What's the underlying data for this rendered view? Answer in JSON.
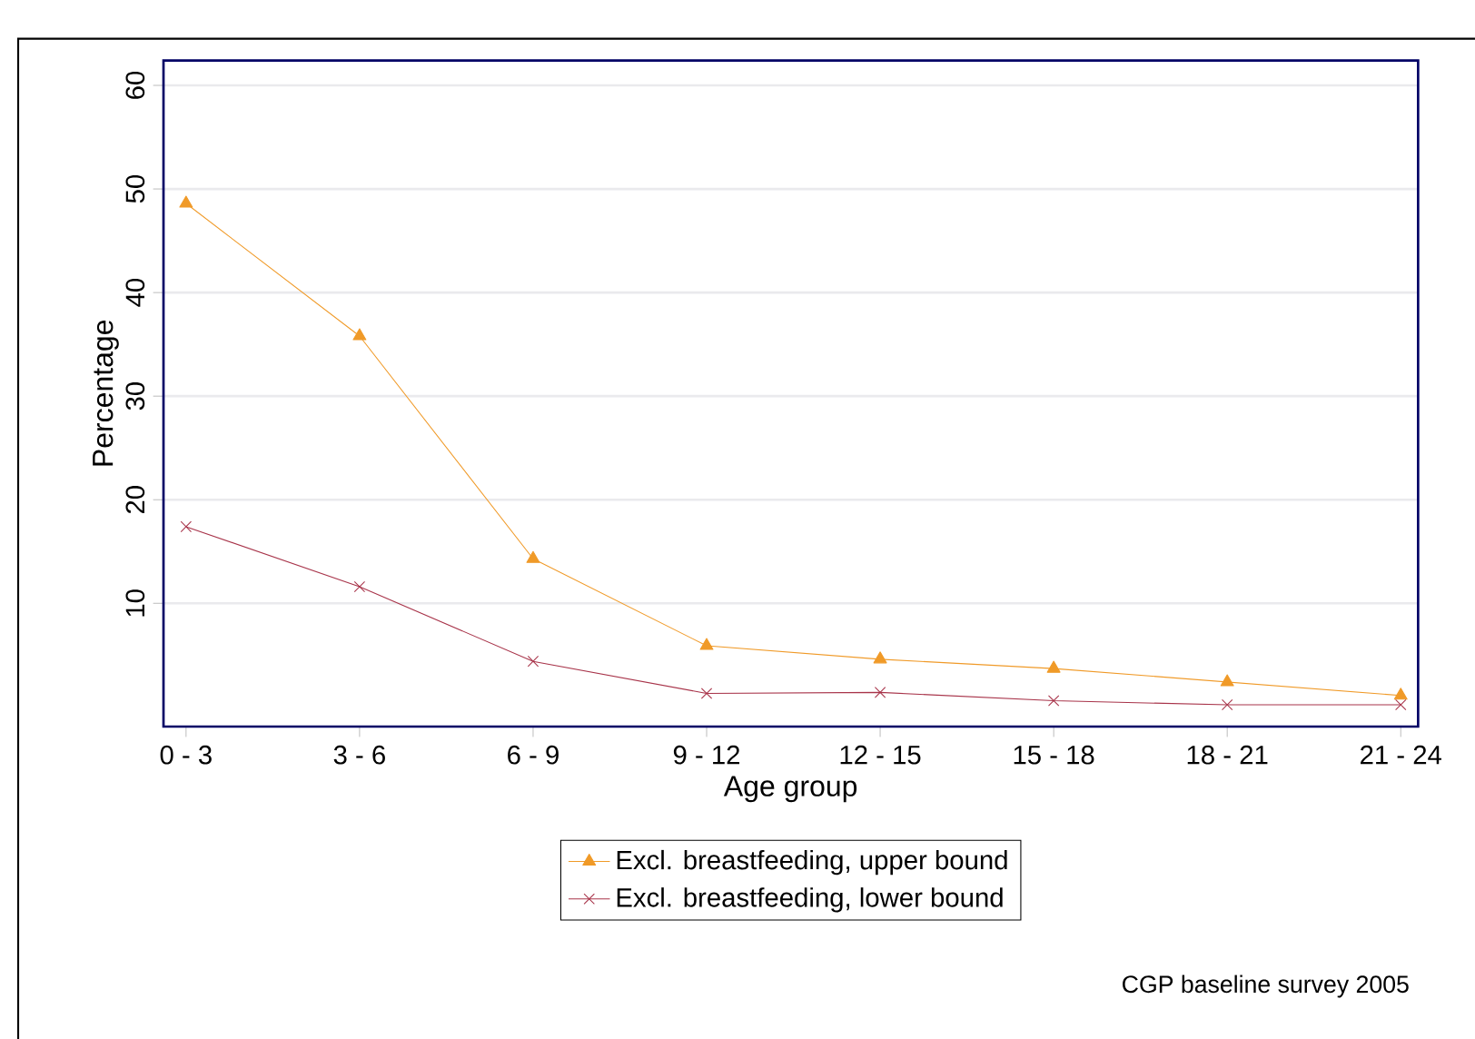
{
  "chart_data": {
    "type": "line",
    "xlabel": "Age group",
    "ylabel": "Percentage",
    "categories": [
      "0 - 3",
      "3 - 6",
      "6 - 9",
      "9 - 12",
      "12 - 15",
      "15 - 18",
      "18 - 21",
      "21 - 24"
    ],
    "series": [
      {
        "name": "Excl. breastfeeding, upper bound",
        "color": "#f09a28",
        "marker": "triangle",
        "values": [
          48.6,
          35.8,
          14.3,
          5.9,
          4.6,
          3.7,
          2.4,
          1.1
        ]
      },
      {
        "name": "Excl. breastfeeding, lower bound",
        "color": "#a8344a",
        "marker": "cross",
        "values": [
          17.4,
          11.6,
          4.4,
          1.3,
          1.4,
          0.6,
          0.2,
          0.2
        ]
      }
    ],
    "ylim": [
      -1.9,
      62.4
    ],
    "yticks": [
      10,
      20,
      30,
      40,
      50,
      60
    ],
    "grid": "y",
    "legend": "bottom",
    "annotations": [
      "CGP baseline survey 2005"
    ]
  }
}
